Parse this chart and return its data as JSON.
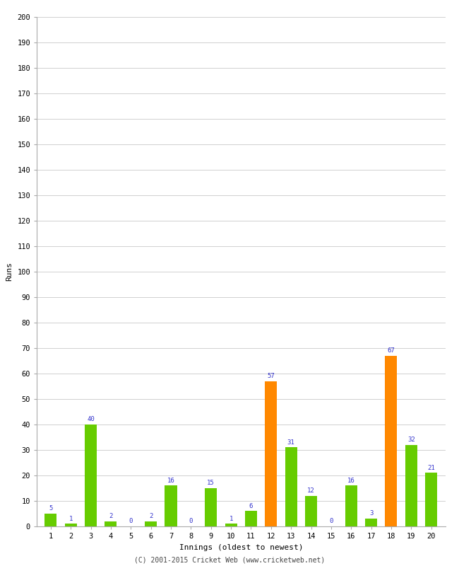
{
  "xlabel": "Innings (oldest to newest)",
  "ylabel": "Runs",
  "categories": [
    1,
    2,
    3,
    4,
    5,
    6,
    7,
    8,
    9,
    10,
    11,
    12,
    13,
    14,
    15,
    16,
    17,
    18,
    19,
    20
  ],
  "values": [
    5,
    1,
    40,
    2,
    0,
    2,
    16,
    0,
    15,
    1,
    6,
    57,
    31,
    12,
    0,
    16,
    3,
    67,
    32,
    21
  ],
  "colors": [
    "#66cc00",
    "#66cc00",
    "#66cc00",
    "#66cc00",
    "#66cc00",
    "#66cc00",
    "#66cc00",
    "#66cc00",
    "#66cc00",
    "#66cc00",
    "#66cc00",
    "#ff8800",
    "#66cc00",
    "#66cc00",
    "#66cc00",
    "#66cc00",
    "#66cc00",
    "#ff8800",
    "#66cc00",
    "#66cc00"
  ],
  "ylim": [
    0,
    200
  ],
  "yticks": [
    0,
    10,
    20,
    30,
    40,
    50,
    60,
    70,
    80,
    90,
    100,
    110,
    120,
    130,
    140,
    150,
    160,
    170,
    180,
    190,
    200
  ],
  "label_color": "#3333cc",
  "label_fontsize": 6.5,
  "axis_fontsize": 8,
  "tick_fontsize": 7.5,
  "background_color": "#ffffff",
  "footer": "(C) 2001-2015 Cricket Web (www.cricketweb.net)",
  "footer_fontsize": 7,
  "bar_width": 0.6
}
